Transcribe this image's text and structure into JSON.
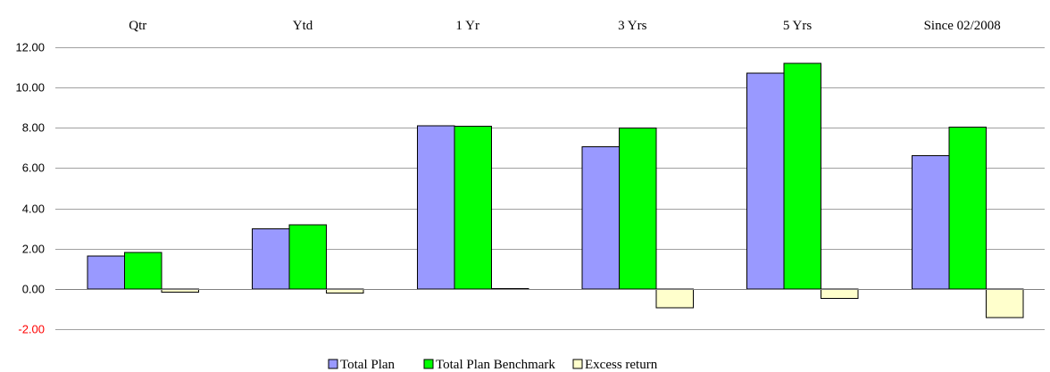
{
  "chart_data": {
    "type": "bar",
    "categories": [
      "Qtr",
      "Ytd",
      "1 Yr",
      "3 Yrs",
      "5 Yrs",
      "Since 02/2008"
    ],
    "series": [
      {
        "name": "Total Plan",
        "color": "#9999ff",
        "values": [
          1.63,
          2.98,
          8.1,
          7.05,
          10.72,
          6.62
        ]
      },
      {
        "name": "Total Plan Benchmark",
        "color": "#00ff00",
        "values": [
          1.8,
          3.19,
          8.08,
          7.98,
          11.2,
          8.04
        ]
      },
      {
        "name": "Excess return",
        "color": "#ffffcc",
        "values": [
          -0.17,
          -0.21,
          0.02,
          -0.93,
          -0.48,
          -1.42
        ]
      }
    ],
    "ylim": [
      -2,
      12
    ],
    "yticks": [
      "-2.00",
      "0.00",
      "2.00",
      "4.00",
      "6.00",
      "8.00",
      "10.00",
      "12.00"
    ],
    "negative_tick_color": "#ff0000",
    "grid": true,
    "category_labels_position": "top",
    "legend_position": "bottom-center"
  }
}
